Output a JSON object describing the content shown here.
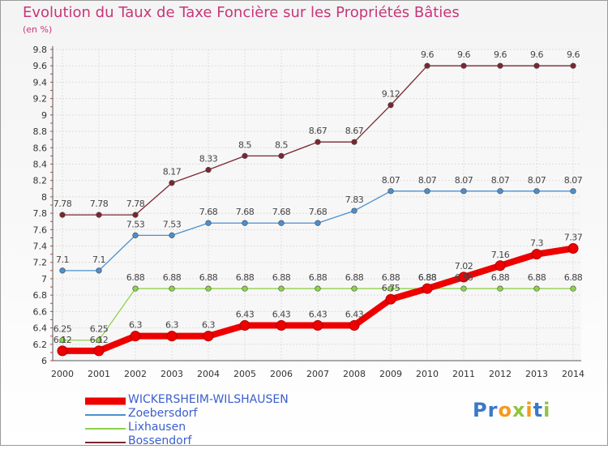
{
  "title": "Evolution du Taux de Taxe Foncière sur les Propriétés Bâties",
  "unit_label": "(en %)",
  "logo": {
    "text": "Proxiti"
  },
  "chart_data": {
    "type": "line",
    "title": "Evolution du Taux de Taxe Foncière sur les Propriétés Bâties",
    "ylabel": "(en %)",
    "xlabel": "",
    "x": [
      "2000",
      "2001",
      "2002",
      "2003",
      "2004",
      "2005",
      "2006",
      "2007",
      "2008",
      "2009",
      "2010",
      "2011",
      "2012",
      "2013",
      "2014"
    ],
    "ylim": [
      6,
      9.8
    ],
    "yticks": [
      "6",
      "6.2",
      "6.4",
      "6.6",
      "6.8",
      "7",
      "7.2",
      "7.4",
      "7.6",
      "7.8",
      "8",
      "8.2",
      "8.4",
      "8.6",
      "8.8",
      "9",
      "9.2",
      "9.4",
      "9.6",
      "9.8"
    ],
    "grid": true,
    "legend_position": "bottom-left",
    "series": [
      {
        "name": "WICKERSHEIM-WILSHAUSEN",
        "color": "#ee0000",
        "values": [
          6.12,
          6.12,
          6.3,
          6.3,
          6.3,
          6.43,
          6.43,
          6.43,
          6.43,
          6.75,
          6.88,
          7.02,
          7.16,
          7.3,
          7.37
        ],
        "labels": [
          "6.12",
          "6.12",
          "6.3",
          "6.3",
          "6.3",
          "6.43",
          "6.43",
          "6.43",
          "6.43",
          "6.75",
          "6.88",
          "7.02",
          "7.16",
          "7.3",
          "7.37"
        ]
      },
      {
        "name": "Zoebersdorf",
        "color": "#4a90d0",
        "values": [
          7.1,
          7.1,
          7.53,
          7.53,
          7.68,
          7.68,
          7.68,
          7.68,
          7.83,
          8.07,
          8.07,
          8.07,
          8.07,
          8.07,
          8.07
        ],
        "labels": [
          "7.1",
          "7.1",
          "7.53",
          "7.53",
          "7.68",
          "7.68",
          "7.68",
          "7.68",
          "7.83",
          "8.07",
          "8.07",
          "8.07",
          "8.07",
          "8.07",
          "8.07"
        ]
      },
      {
        "name": "Lixhausen",
        "color": "#8ed24c",
        "values": [
          6.25,
          6.25,
          6.88,
          6.88,
          6.88,
          6.88,
          6.88,
          6.88,
          6.88,
          6.88,
          6.88,
          6.88,
          6.88,
          6.88,
          6.88
        ],
        "labels": [
          "6.25",
          "6.25",
          "6.88",
          "6.88",
          "6.88",
          "6.88",
          "6.88",
          "6.88",
          "6.88",
          "6.88",
          "6.88",
          "6.88",
          "6.88",
          "6.88",
          "6.88"
        ]
      },
      {
        "name": "Bossendorf",
        "color": "#7b2630",
        "values": [
          7.78,
          7.78,
          7.78,
          8.17,
          8.33,
          8.5,
          8.5,
          8.67,
          8.67,
          9.12,
          9.6,
          9.6,
          9.6,
          9.6,
          9.6
        ],
        "labels": [
          "7.78",
          "7.78",
          "7.78",
          "8.17",
          "8.33",
          "8.5",
          "8.5",
          "8.67",
          "8.67",
          "9.12",
          "9.6",
          "9.6",
          "9.6",
          "9.6",
          "9.6"
        ]
      }
    ]
  }
}
